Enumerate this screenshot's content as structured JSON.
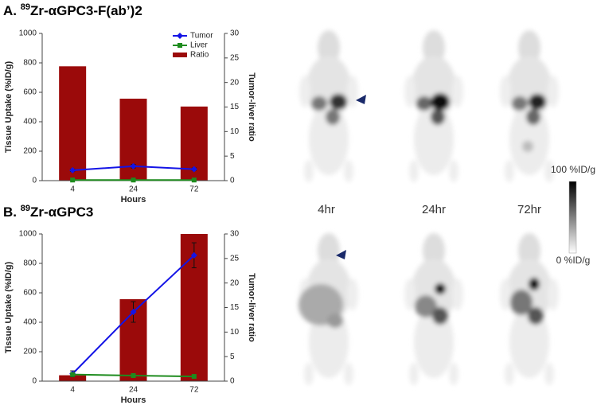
{
  "chart_data": [
    {
      "type": "combo",
      "label": "A.",
      "isotope_mass": "89",
      "title": "Zr-αGPC3-F(ab’)2",
      "x_label": "Hours",
      "y_label": "Tissue Uptake (%ID/g)",
      "y2_label": "Tumor-liver ratio",
      "categories": [
        "4",
        "24",
        "72"
      ],
      "ylim": [
        0,
        1000
      ],
      "yticks": [
        0,
        200,
        400,
        600,
        800,
        1000
      ],
      "y2lim": [
        0,
        30
      ],
      "y2ticks": [
        0,
        5,
        10,
        15,
        20,
        25,
        30
      ],
      "legend": "upper right",
      "series": [
        {
          "name": "Tumor",
          "kind": "line",
          "marker": "diamond",
          "color": "#1414e6",
          "values": [
            70,
            98,
            78
          ],
          "errors": [
            8,
            12,
            8
          ]
        },
        {
          "name": "Liver",
          "kind": "line",
          "marker": "square",
          "color": "#1e8c1e",
          "values": [
            4,
            4,
            4
          ]
        },
        {
          "name": "Ratio",
          "kind": "bar",
          "axis": "y2",
          "color": "#9b0a0a",
          "values": [
            23.3,
            16.7,
            15.1
          ]
        }
      ]
    },
    {
      "type": "combo",
      "label": "B.",
      "isotope_mass": "89",
      "title": "Zr-αGPC3",
      "x_label": "Hours",
      "y_label": "Tissue Uptake (%ID/g)",
      "y2_label": "Tumor-liver ratio",
      "categories": [
        "4",
        "24",
        "72"
      ],
      "ylim": [
        0,
        1000
      ],
      "yticks": [
        0,
        200,
        400,
        600,
        800,
        1000
      ],
      "y2lim": [
        0,
        30
      ],
      "y2ticks": [
        0,
        5,
        10,
        15,
        20,
        25,
        30
      ],
      "legend": null,
      "series": [
        {
          "name": "Tumor",
          "kind": "line",
          "marker": "diamond",
          "color": "#1414e6",
          "values": [
            50,
            470,
            855
          ],
          "errors": [
            20,
            70,
            85
          ]
        },
        {
          "name": "Liver",
          "kind": "line",
          "marker": "square",
          "color": "#1e8c1e",
          "values": [
            45,
            38,
            32
          ]
        },
        {
          "name": "Ratio",
          "kind": "bar",
          "axis": "y2",
          "color": "#9b0a0a",
          "values": [
            1.2,
            16.7,
            30
          ]
        }
      ]
    }
  ],
  "images": {
    "time_labels": [
      "4hr",
      "24hr",
      "72hr"
    ],
    "colorbar": {
      "max_label": "100 %ID/g",
      "min_label": "0 %ID/g"
    }
  }
}
